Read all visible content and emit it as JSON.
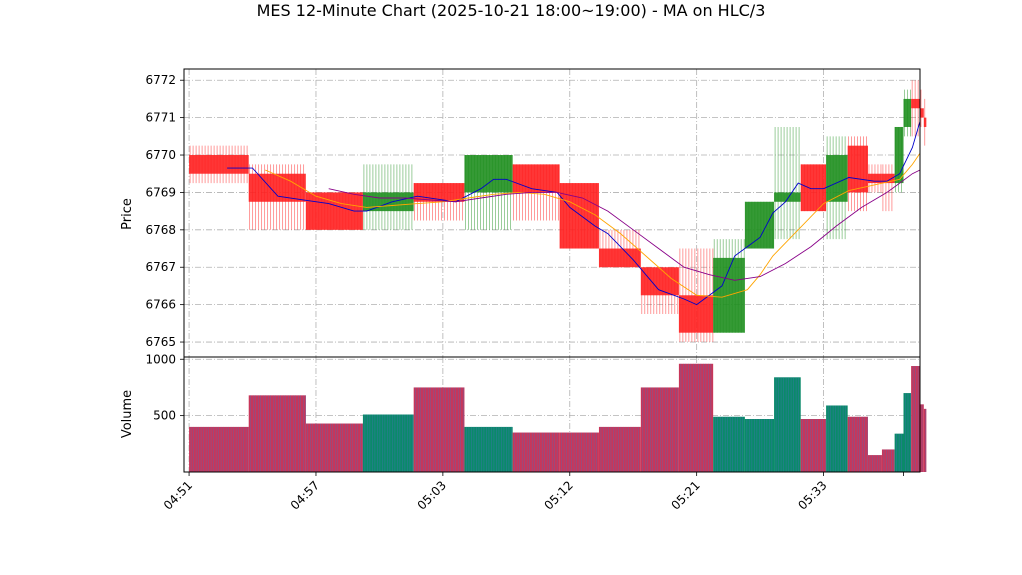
{
  "chart_data": {
    "type": "candlestick",
    "title": "MES 12-Minute Chart (2025-10-21 18:00~19:00) - MA on HLC/3",
    "price_panel": {
      "ylabel": "Price",
      "ylim": [
        6764.6,
        6772.3
      ],
      "yticks": [
        6765,
        6766,
        6767,
        6768,
        6769,
        6770,
        6771,
        6772
      ],
      "grid": true
    },
    "volume_panel": {
      "ylabel": "Volume",
      "ylim": [
        0,
        1020
      ],
      "yticks": [
        500,
        1000
      ],
      "grid": true
    },
    "xlim": [
      4.6,
      62.6
    ],
    "xticks": [
      {
        "x": 5,
        "label": "04:51"
      },
      {
        "x": 15,
        "label": "04:57"
      },
      {
        "x": 25,
        "label": "05:03"
      },
      {
        "x": 35,
        "label": "05:12"
      },
      {
        "x": 45,
        "label": "05:21"
      },
      {
        "x": 55,
        "label": "05:33"
      },
      {
        "x": 61.3,
        "label": ""
      }
    ],
    "colors": {
      "up": "#1f8f1f",
      "down": "#ff2020",
      "vol_up": "#0a8a6a",
      "vol_down": "#c8365a",
      "ma1": "#0000cc",
      "ma2": "#ffa500",
      "ma3": "#880088"
    },
    "bars": [
      {
        "x0": 5.0,
        "x1": 9.7,
        "o": 6770.0,
        "h": 6770.25,
        "l": 6769.25,
        "c": 6769.5,
        "v": 400
      },
      {
        "x0": 9.7,
        "x1": 14.2,
        "o": 6769.5,
        "h": 6769.75,
        "l": 6768.0,
        "c": 6768.75,
        "v": 680
      },
      {
        "x0": 14.2,
        "x1": 18.7,
        "o": 6769.0,
        "h": 6769.0,
        "l": 6768.0,
        "c": 6768.0,
        "v": 430
      },
      {
        "x0": 18.7,
        "x1": 22.7,
        "o": 6768.5,
        "h": 6769.75,
        "l": 6768.0,
        "c": 6769.0,
        "v": 510
      },
      {
        "x0": 22.7,
        "x1": 26.7,
        "o": 6769.25,
        "h": 6769.25,
        "l": 6768.25,
        "c": 6768.75,
        "v": 750
      },
      {
        "x0": 26.7,
        "x1": 30.5,
        "o": 6769.0,
        "h": 6770.0,
        "l": 6768.0,
        "c": 6770.0,
        "v": 400
      },
      {
        "x0": 30.5,
        "x1": 34.2,
        "o": 6769.75,
        "h": 6769.75,
        "l": 6768.25,
        "c": 6769.0,
        "v": 350
      },
      {
        "x0": 34.2,
        "x1": 37.3,
        "o": 6769.25,
        "h": 6769.25,
        "l": 6767.5,
        "c": 6767.5,
        "v": 350
      },
      {
        "x0": 37.3,
        "x1": 40.6,
        "o": 6767.5,
        "h": 6768.0,
        "l": 6767.0,
        "c": 6767.0,
        "v": 400
      },
      {
        "x0": 40.6,
        "x1": 43.6,
        "o": 6767.0,
        "h": 6767.0,
        "l": 6765.75,
        "c": 6766.25,
        "v": 750
      },
      {
        "x0": 43.6,
        "x1": 46.3,
        "o": 6766.25,
        "h": 6767.5,
        "l": 6765.0,
        "c": 6765.25,
        "v": 960
      },
      {
        "x0": 46.3,
        "x1": 48.8,
        "o": 6765.25,
        "h": 6767.75,
        "l": 6765.25,
        "c": 6767.25,
        "v": 490
      },
      {
        "x0": 48.8,
        "x1": 51.1,
        "o": 6767.5,
        "h": 6768.75,
        "l": 6767.5,
        "c": 6768.75,
        "v": 470
      },
      {
        "x0": 51.1,
        "x1": 53.2,
        "o": 6768.75,
        "h": 6770.75,
        "l": 6767.75,
        "c": 6769.0,
        "v": 840
      },
      {
        "x0": 53.2,
        "x1": 55.2,
        "o": 6769.75,
        "h": 6769.75,
        "l": 6768.5,
        "c": 6768.5,
        "v": 470
      },
      {
        "x0": 55.2,
        "x1": 56.9,
        "o": 6768.75,
        "h": 6770.5,
        "l": 6767.75,
        "c": 6770.0,
        "v": 590
      },
      {
        "x0": 56.9,
        "x1": 58.5,
        "o": 6770.25,
        "h": 6770.5,
        "l": 6768.5,
        "c": 6769.0,
        "v": 490
      },
      {
        "x0": 58.5,
        "x1": 59.6,
        "o": 6769.5,
        "h": 6769.75,
        "l": 6769.0,
        "c": 6769.25,
        "v": 150
      },
      {
        "x0": 59.6,
        "x1": 60.6,
        "o": 6769.5,
        "h": 6769.75,
        "l": 6768.5,
        "c": 6769.25,
        "v": 200
      },
      {
        "x0": 60.6,
        "x1": 61.3,
        "o": 6769.25,
        "h": 6770.75,
        "l": 6769.0,
        "c": 6770.75,
        "v": 340
      },
      {
        "x0": 61.3,
        "x1": 61.9,
        "o": 6770.75,
        "h": 6771.75,
        "l": 6770.5,
        "c": 6771.5,
        "v": 700
      },
      {
        "x0": 61.9,
        "x1": 62.6,
        "o": 6771.5,
        "h": 6772.0,
        "l": 6770.5,
        "c": 6771.25,
        "v": 940
      },
      {
        "x0": 62.6,
        "x1": 62.9,
        "o": 6771.25,
        "h": 6771.75,
        "l": 6770.75,
        "c": 6771.0,
        "v": 600
      },
      {
        "x0": 62.9,
        "x1": 63.1,
        "o": 6771.0,
        "h": 6771.5,
        "l": 6770.25,
        "c": 6770.75,
        "v": 560
      }
    ],
    "series": [
      {
        "color": "#0000cc",
        "points": [
          [
            8.0,
            6769.65
          ],
          [
            10.0,
            6769.65
          ],
          [
            12.0,
            6768.9
          ],
          [
            14.0,
            6768.8
          ],
          [
            16.0,
            6768.7
          ],
          [
            18.0,
            6768.5
          ],
          [
            19.0,
            6768.5
          ],
          [
            21.0,
            6768.75
          ],
          [
            23.0,
            6768.9
          ],
          [
            25.0,
            6768.8
          ],
          [
            26.0,
            6768.75
          ],
          [
            28.0,
            6769.1
          ],
          [
            29.0,
            6769.35
          ],
          [
            30.0,
            6769.35
          ],
          [
            32.0,
            6769.1
          ],
          [
            34.0,
            6769.0
          ],
          [
            35.0,
            6768.6
          ],
          [
            37.0,
            6768.1
          ],
          [
            38.0,
            6767.9
          ],
          [
            40.0,
            6767.2
          ],
          [
            42.0,
            6766.4
          ],
          [
            44.0,
            6766.15
          ],
          [
            45.0,
            6766.0
          ],
          [
            47.0,
            6766.5
          ],
          [
            48.0,
            6767.3
          ],
          [
            50.0,
            6767.8
          ],
          [
            51.0,
            6768.45
          ],
          [
            52.0,
            6768.75
          ],
          [
            53.0,
            6769.25
          ],
          [
            54.0,
            6769.1
          ],
          [
            55.0,
            6769.1
          ],
          [
            57.0,
            6769.4
          ],
          [
            59.0,
            6769.3
          ],
          [
            60.0,
            6769.3
          ],
          [
            61.0,
            6769.5
          ],
          [
            62.0,
            6770.2
          ],
          [
            62.6,
            6770.9
          ]
        ]
      },
      {
        "color": "#ffa500",
        "points": [
          [
            11.0,
            6769.6
          ],
          [
            13.0,
            6769.3
          ],
          [
            15.0,
            6768.9
          ],
          [
            17.0,
            6768.7
          ],
          [
            19.0,
            6768.6
          ],
          [
            21.0,
            6768.65
          ],
          [
            23.0,
            6768.7
          ],
          [
            25.0,
            6768.75
          ],
          [
            27.0,
            6768.85
          ],
          [
            29.0,
            6768.95
          ],
          [
            31.0,
            6769.0
          ],
          [
            33.0,
            6768.95
          ],
          [
            35.0,
            6768.75
          ],
          [
            37.0,
            6768.4
          ],
          [
            39.0,
            6767.9
          ],
          [
            41.0,
            6767.3
          ],
          [
            43.0,
            6766.7
          ],
          [
            45.0,
            6766.25
          ],
          [
            47.0,
            6766.2
          ],
          [
            49.0,
            6766.4
          ],
          [
            50.0,
            6766.8
          ],
          [
            51.0,
            6767.3
          ],
          [
            53.0,
            6768.0
          ],
          [
            55.0,
            6768.7
          ],
          [
            57.0,
            6769.05
          ],
          [
            59.0,
            6769.2
          ],
          [
            61.0,
            6769.35
          ],
          [
            62.0,
            6769.75
          ],
          [
            62.6,
            6770.05
          ]
        ]
      },
      {
        "color": "#880088",
        "points": [
          [
            16.0,
            6769.1
          ],
          [
            18.0,
            6768.95
          ],
          [
            20.0,
            6768.85
          ],
          [
            22.0,
            6768.85
          ],
          [
            24.0,
            6768.8
          ],
          [
            26.0,
            6768.75
          ],
          [
            28.0,
            6768.85
          ],
          [
            30.0,
            6768.95
          ],
          [
            32.0,
            6769.0
          ],
          [
            34.0,
            6769.0
          ],
          [
            36.0,
            6768.85
          ],
          [
            38.0,
            6768.5
          ],
          [
            40.0,
            6768.0
          ],
          [
            42.0,
            6767.5
          ],
          [
            44.0,
            6767.0
          ],
          [
            46.0,
            6766.8
          ],
          [
            48.0,
            6766.65
          ],
          [
            50.0,
            6766.75
          ],
          [
            52.0,
            6767.1
          ],
          [
            54.0,
            6767.55
          ],
          [
            56.0,
            6768.1
          ],
          [
            58.0,
            6768.6
          ],
          [
            60.0,
            6769.0
          ],
          [
            61.0,
            6769.25
          ],
          [
            62.0,
            6769.5
          ],
          [
            62.6,
            6769.6
          ]
        ]
      }
    ]
  }
}
